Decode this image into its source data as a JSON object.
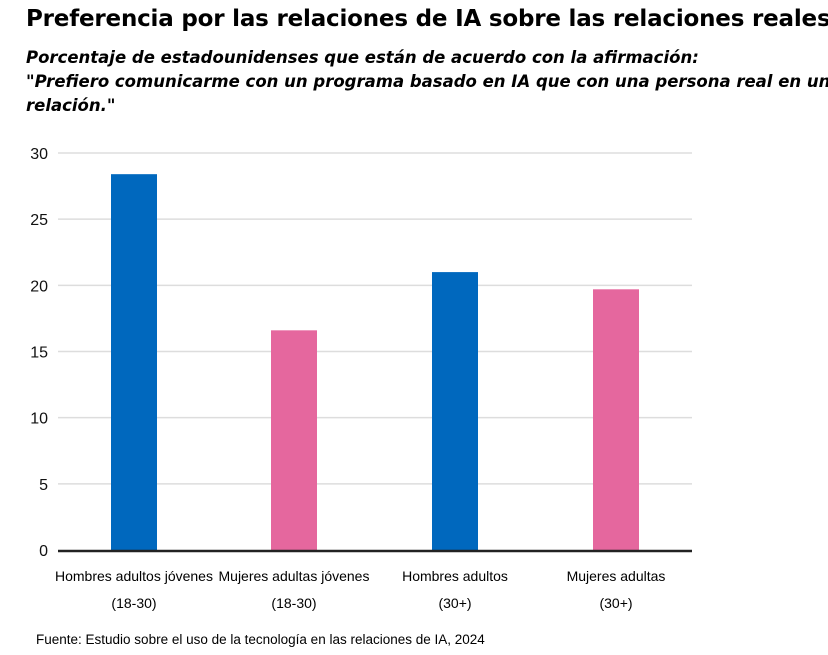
{
  "title": "Preferencia por las relaciones de IA sobre las relaciones reales",
  "subtitle_line1": "Porcentaje de estadounidenses que están de acuerdo con la afirmación:",
  "subtitle_line2": "\"Prefiero comunicarme con un programa basado en IA que con una persona real en una",
  "subtitle_line3": "relación.\"",
  "source": "Fuente: Estudio sobre el uso de la tecnología en las relaciones de IA, 2024",
  "colors": {
    "men": "#0068be",
    "women": "#e5679e",
    "grid": "#dddddd",
    "axis": "#222222"
  },
  "chart_data": {
    "type": "bar",
    "categories": [
      [
        "Hombres adultos jóvenes",
        "(18-30)"
      ],
      [
        "Mujeres adultas jóvenes",
        "(18-30)"
      ],
      [
        "Hombres adultos",
        "(30+)"
      ],
      [
        "Mujeres adultas",
        "(30+)"
      ]
    ],
    "values": [
      28.4,
      16.6,
      21.0,
      19.7
    ],
    "bar_colors": [
      "#0068be",
      "#e5679e",
      "#0068be",
      "#e5679e"
    ],
    "ylim": [
      0,
      30
    ],
    "yticks": [
      0,
      5,
      10,
      15,
      20,
      25,
      30
    ],
    "grid": true,
    "xlabel": "",
    "ylabel": ""
  }
}
